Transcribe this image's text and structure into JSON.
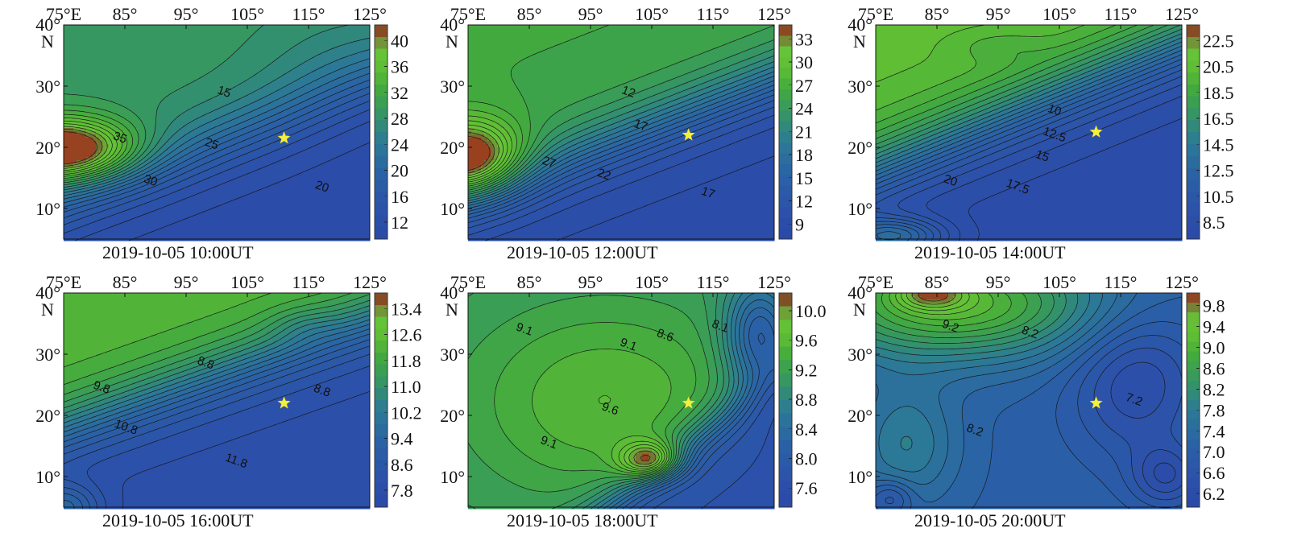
{
  "lon_labels": [
    "75°E",
    "85°",
    "95°",
    "105°",
    "115°",
    "125°"
  ],
  "lat_labels": [
    "40°",
    "30°",
    "20°",
    "10°"
  ],
  "north_label": "N",
  "chart_data": [
    {
      "type": "contour",
      "caption": "2019-10-05 10:00UT",
      "lon_range": [
        75,
        125
      ],
      "lat_range": [
        5,
        40
      ],
      "colorbar_ticks": [
        "40",
        "36",
        "32",
        "28",
        "24",
        "20",
        "16",
        "12"
      ],
      "value_range": [
        10,
        42
      ],
      "contour_labels": [
        {
          "text": "15",
          "lon": 101,
          "lat": 28.5
        },
        {
          "text": "35",
          "lon": 84,
          "lat": 21
        },
        {
          "text": "25",
          "lon": 99,
          "lat": 20
        },
        {
          "text": "30",
          "lon": 89,
          "lat": 14
        },
        {
          "text": "20",
          "lon": 117,
          "lat": 13
        }
      ],
      "star": {
        "lon": 111,
        "lat": 21.5
      }
    },
    {
      "type": "contour",
      "caption": "2019-10-05 12:00UT",
      "lon_range": [
        75,
        125
      ],
      "lat_range": [
        5,
        40
      ],
      "colorbar_ticks": [
        "33",
        "30",
        "27",
        "24",
        "21",
        "18",
        "15",
        "12",
        "9"
      ],
      "value_range": [
        7,
        35
      ],
      "contour_labels": [
        {
          "text": "12",
          "lon": 101,
          "lat": 28.5
        },
        {
          "text": "17",
          "lon": 103,
          "lat": 23
        },
        {
          "text": "27",
          "lon": 88,
          "lat": 17
        },
        {
          "text": "22",
          "lon": 97,
          "lat": 15
        },
        {
          "text": "17",
          "lon": 114,
          "lat": 12
        }
      ],
      "star": {
        "lon": 111,
        "lat": 22
      }
    },
    {
      "type": "contour",
      "caption": "2019-10-05 14:00UT",
      "lon_range": [
        75,
        125
      ],
      "lat_range": [
        5,
        40
      ],
      "colorbar_ticks": [
        "22.5",
        "20.5",
        "18.5",
        "16.5",
        "14.5",
        "12.5",
        "10.5",
        "8.5"
      ],
      "value_range": [
        7.5,
        24
      ],
      "contour_labels": [
        {
          "text": "10",
          "lon": 104,
          "lat": 25.5
        },
        {
          "text": "12.5",
          "lon": 104,
          "lat": 21.5
        },
        {
          "text": "15",
          "lon": 102,
          "lat": 18
        },
        {
          "text": "20",
          "lon": 87,
          "lat": 14
        },
        {
          "text": "17.5",
          "lon": 98,
          "lat": 13
        }
      ],
      "star": {
        "lon": 111,
        "lat": 22.5
      }
    },
    {
      "type": "contour",
      "caption": "2019-10-05 16:00UT",
      "lon_range": [
        75,
        125
      ],
      "lat_range": [
        5,
        40
      ],
      "colorbar_ticks": [
        "13.4",
        "12.6",
        "11.8",
        "11.0",
        "10.2",
        "9.4",
        "8.6",
        "7.8"
      ],
      "value_range": [
        7.6,
        13.8
      ],
      "contour_labels": [
        {
          "text": "8.8",
          "lon": 98,
          "lat": 28
        },
        {
          "text": "9.8",
          "lon": 81,
          "lat": 24
        },
        {
          "text": "8.8",
          "lon": 117,
          "lat": 23.5
        },
        {
          "text": "10.8",
          "lon": 85,
          "lat": 17.5
        },
        {
          "text": "11.8",
          "lon": 103,
          "lat": 12
        }
      ],
      "star": {
        "lon": 111,
        "lat": 22
      }
    },
    {
      "type": "contour",
      "caption": "2019-10-05 18:00UT",
      "lon_range": [
        75,
        125
      ],
      "lat_range": [
        5,
        40
      ],
      "colorbar_ticks": [
        "10.0",
        "9.6",
        "9.2",
        "8.8",
        "8.4",
        "8.0",
        "7.6"
      ],
      "value_range": [
        7.5,
        10.2
      ],
      "contour_labels": [
        {
          "text": "9.1",
          "lon": 84,
          "lat": 33.5
        },
        {
          "text": "9.1",
          "lon": 101,
          "lat": 31
        },
        {
          "text": "8.6",
          "lon": 107,
          "lat": 32.5
        },
        {
          "text": "8.1",
          "lon": 116,
          "lat": 34
        },
        {
          "text": "9.6",
          "lon": 98,
          "lat": 20.5
        },
        {
          "text": "9.1",
          "lon": 88,
          "lat": 15
        }
      ],
      "star": {
        "lon": 111,
        "lat": 22
      }
    },
    {
      "type": "contour",
      "caption": "2019-10-05 20:00UT",
      "lon_range": [
        75,
        125
      ],
      "lat_range": [
        5,
        40
      ],
      "colorbar_ticks": [
        "9.8",
        "9.4",
        "9.0",
        "8.6",
        "8.2",
        "7.8",
        "7.4",
        "7.0",
        "6.6",
        "6.2"
      ],
      "value_range": [
        6.1,
        9.9
      ],
      "contour_labels": [
        {
          "text": "9.2",
          "lon": 87,
          "lat": 34
        },
        {
          "text": "8.2",
          "lon": 100,
          "lat": 33
        },
        {
          "text": "8.2",
          "lon": 91,
          "lat": 17
        },
        {
          "text": "7.2",
          "lon": 117,
          "lat": 22
        }
      ],
      "star": {
        "lon": 111,
        "lat": 22
      }
    }
  ]
}
